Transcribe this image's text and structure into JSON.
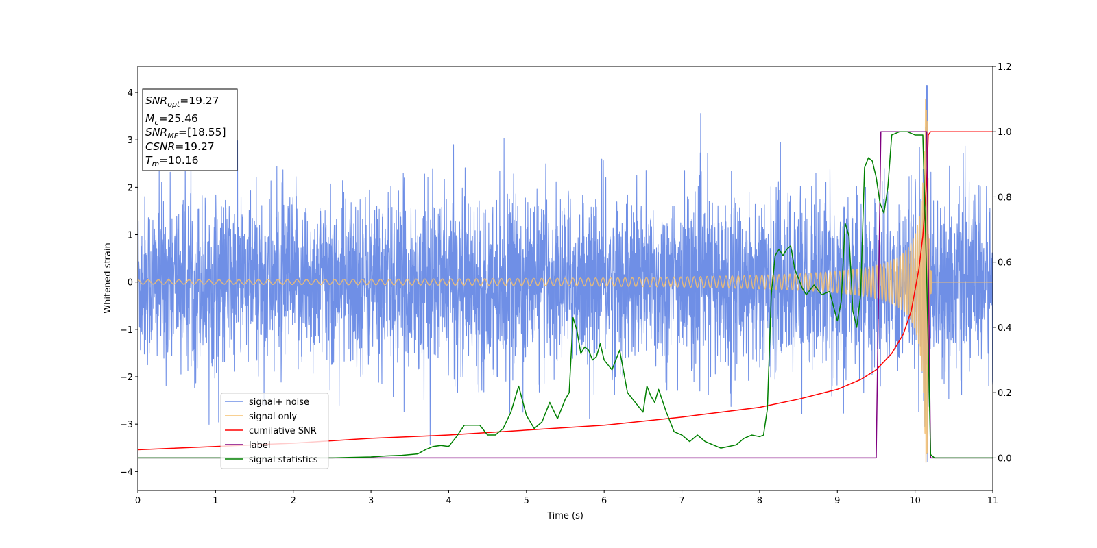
{
  "chart_data": {
    "type": "line",
    "xlabel": "Time (s)",
    "ylabel": "Whitened strain",
    "xlim": [
      0,
      11
    ],
    "ylim": [
      -4.4,
      4.55
    ],
    "y2lim": [
      -0.1,
      1.2
    ],
    "x_ticks": [
      "0",
      "1",
      "2",
      "3",
      "4",
      "5",
      "6",
      "7",
      "8",
      "9",
      "10",
      "11"
    ],
    "y_ticks": [
      "−4",
      "−3",
      "−2",
      "−1",
      "0",
      "1",
      "2",
      "3",
      "4"
    ],
    "y2_ticks": [
      "0.0",
      "0.2",
      "0.4",
      "0.6",
      "0.8",
      "1.0",
      "1.2"
    ],
    "grid": false,
    "legend_position": "lower-left",
    "info_box": {
      "snr_opt": {
        "sym": "SNR",
        "sub": "opt",
        "val": "=19.27"
      },
      "mc": {
        "sym": "M",
        "sub": "c",
        "val": "=25.46"
      },
      "snr_mf": {
        "sym": "SNR",
        "sub": "MF",
        "val": "=[18.55]"
      },
      "csnr": {
        "sym": "CSNR",
        "sub": "",
        "val": "=19.27"
      },
      "tm": {
        "sym": "T",
        "sub": "m",
        "val": "=10.16"
      }
    },
    "series": [
      {
        "name": "signal+ noise",
        "axis": "left",
        "color": "#6f8fe6",
        "kind": "noisy",
        "x_range": [
          0,
          11
        ],
        "sigma": 0.9,
        "peak_min": -3.8,
        "peak_max": 4.15,
        "peak_at": 10.15
      },
      {
        "name": "signal only",
        "axis": "left",
        "color": "#f5c06f",
        "kind": "chirp",
        "x_range": [
          0,
          11
        ],
        "merger_time": 10.16,
        "peak_amplitude": 4.0
      },
      {
        "name": "cumilative SNR",
        "axis": "right",
        "color": "#ff0000",
        "x": [
          0,
          1,
          2,
          3,
          4,
          5,
          6,
          7,
          7.5,
          8,
          8.5,
          9,
          9.3,
          9.5,
          9.7,
          9.85,
          9.95,
          10.05,
          10.1,
          10.15,
          10.17,
          10.2,
          11
        ],
        "y": [
          0.025,
          0.035,
          0.045,
          0.06,
          0.07,
          0.085,
          0.1,
          0.125,
          0.14,
          0.155,
          0.18,
          0.21,
          0.24,
          0.27,
          0.32,
          0.38,
          0.45,
          0.58,
          0.68,
          0.85,
          0.99,
          1.0,
          1.0
        ]
      },
      {
        "name": "label",
        "axis": "right",
        "color": "#800080",
        "x": [
          0,
          9.5,
          9.56,
          10.15,
          10.2,
          11
        ],
        "y": [
          0,
          0,
          1,
          1,
          0,
          0
        ]
      },
      {
        "name": "signal statistics",
        "axis": "right",
        "color": "#008000",
        "x": [
          0,
          0.5,
          1,
          1.5,
          2,
          2.5,
          3,
          3.2,
          3.4,
          3.6,
          3.7,
          3.8,
          3.9,
          4.0,
          4.1,
          4.2,
          4.3,
          4.4,
          4.5,
          4.6,
          4.7,
          4.8,
          4.9,
          5.0,
          5.1,
          5.2,
          5.3,
          5.4,
          5.5,
          5.55,
          5.6,
          5.65,
          5.7,
          5.75,
          5.8,
          5.85,
          5.9,
          5.95,
          6.0,
          6.1,
          6.2,
          6.3,
          6.4,
          6.5,
          6.55,
          6.6,
          6.65,
          6.7,
          6.8,
          6.9,
          7.0,
          7.1,
          7.2,
          7.3,
          7.5,
          7.7,
          7.8,
          7.9,
          8.0,
          8.05,
          8.1,
          8.15,
          8.2,
          8.25,
          8.3,
          8.35,
          8.4,
          8.45,
          8.5,
          8.55,
          8.6,
          8.7,
          8.8,
          8.9,
          9.0,
          9.05,
          9.1,
          9.15,
          9.2,
          9.25,
          9.3,
          9.35,
          9.4,
          9.45,
          9.5,
          9.55,
          9.6,
          9.65,
          9.7,
          9.8,
          9.9,
          10.0,
          10.1,
          10.15,
          10.2,
          10.25,
          10.5,
          11
        ],
        "y": [
          0,
          0,
          0,
          0,
          0,
          0,
          0.003,
          0.006,
          0.008,
          0.012,
          0.025,
          0.035,
          0.038,
          0.035,
          0.065,
          0.1,
          0.1,
          0.1,
          0.07,
          0.07,
          0.09,
          0.14,
          0.22,
          0.13,
          0.09,
          0.11,
          0.17,
          0.12,
          0.18,
          0.2,
          0.43,
          0.39,
          0.32,
          0.34,
          0.33,
          0.3,
          0.31,
          0.35,
          0.3,
          0.27,
          0.33,
          0.2,
          0.17,
          0.14,
          0.22,
          0.19,
          0.17,
          0.21,
          0.14,
          0.08,
          0.07,
          0.05,
          0.07,
          0.05,
          0.03,
          0.04,
          0.06,
          0.07,
          0.065,
          0.07,
          0.15,
          0.5,
          0.62,
          0.64,
          0.62,
          0.64,
          0.65,
          0.58,
          0.55,
          0.52,
          0.5,
          0.53,
          0.5,
          0.51,
          0.42,
          0.48,
          0.72,
          0.68,
          0.45,
          0.4,
          0.5,
          0.89,
          0.92,
          0.91,
          0.86,
          0.78,
          0.75,
          0.83,
          0.99,
          1.0,
          1.0,
          0.99,
          0.99,
          0.55,
          0.01,
          0.0,
          0.0,
          0.0
        ]
      }
    ]
  }
}
